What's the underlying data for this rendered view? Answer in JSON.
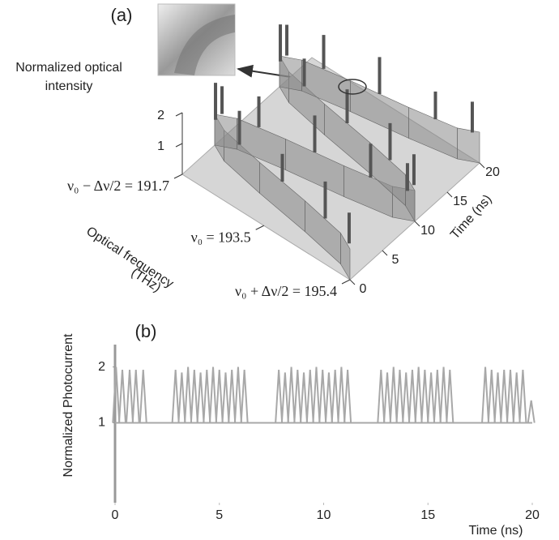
{
  "chart_data": [
    {
      "type": "surface3d",
      "title": "(a)",
      "annotation": [
        "Normalized optical",
        "intensity"
      ],
      "xlabel": "Time (ns)",
      "ylabel": [
        "Optical frequency",
        "(THz)"
      ],
      "xlim": [
        0,
        20
      ],
      "xticks": [
        0,
        5,
        10,
        15,
        20
      ],
      "ylim": [
        195.4,
        191.7
      ],
      "yticks": [
        {
          "value": 191.7,
          "label": "ν₀ − Δν/2 = 191.7"
        },
        {
          "value": 193.5,
          "label": "ν₀ = 193.5"
        },
        {
          "value": 195.4,
          "label": "ν₀ + Δν/2 = 195.4"
        }
      ],
      "zlim": [
        0,
        2
      ],
      "zticks": [
        1,
        2
      ],
      "baseline": 1,
      "color": "#8a8a8a",
      "trace": {
        "x": [
          0,
          1,
          2,
          3,
          4,
          5,
          6,
          7,
          8,
          9,
          10,
          11,
          12,
          13,
          14,
          15,
          16,
          17,
          18,
          19,
          20
        ],
        "values": [
          195.4,
          195.05,
          194.12,
          192.98,
          192.05,
          191.7,
          192.05,
          192.98,
          194.12,
          195.05,
          195.4,
          195.05,
          194.12,
          192.98,
          192.05,
          191.7,
          192.05,
          192.98,
          194.12,
          195.05,
          195.4
        ]
      },
      "pulses": {
        "x": [
          0.5,
          1.5,
          2.5,
          3.5,
          4.5,
          5.5,
          6.5,
          7.5,
          8.5,
          9.5,
          10.5,
          11.5,
          12.5,
          13.5,
          14.5,
          15.5,
          16.5,
          17.5,
          18.5,
          19.5
        ],
        "y": [
          195.31,
          194.64,
          193.55,
          192.46,
          191.79,
          191.79,
          192.46,
          193.55,
          194.64,
          195.31,
          195.31,
          194.64,
          193.55,
          192.46,
          191.79,
          191.79,
          192.46,
          193.55,
          194.64,
          195.31
        ],
        "values": [
          2.0,
          2.2,
          1.9,
          2.1,
          2.2,
          1.9,
          2.0,
          2.2,
          2.1,
          1.9,
          2.0,
          2.2,
          2.1,
          1.9,
          2.2,
          2.0,
          2.1,
          2.2,
          1.9,
          2.0
        ]
      }
    },
    {
      "type": "pulse",
      "title": "(b)",
      "xlabel": "Time (ns)",
      "ylabel": "Normalized Photocurrent",
      "xlim": [
        0,
        20
      ],
      "xticks": [
        0,
        5,
        10,
        15,
        20
      ],
      "ylim": [
        -0.43,
        2.4
      ],
      "yticks": [
        1,
        2
      ],
      "baseline": 1,
      "color": "#a8a8a8",
      "x": [
        0.05,
        0.35,
        0.7,
        1.0,
        1.35,
        2.9,
        3.2,
        3.5,
        3.8,
        4.1,
        4.4,
        4.7,
        5.0,
        5.3,
        5.6,
        5.9,
        6.2,
        7.85,
        8.15,
        8.45,
        8.75,
        9.05,
        9.35,
        9.65,
        9.95,
        10.25,
        10.55,
        10.85,
        11.15,
        12.75,
        13.05,
        13.35,
        13.65,
        13.95,
        14.25,
        14.55,
        14.85,
        15.15,
        15.45,
        15.75,
        16.05,
        17.75,
        18.05,
        18.35,
        18.65,
        18.95,
        19.25,
        19.55,
        19.95
      ],
      "values": [
        2.0,
        1.95,
        1.95,
        1.95,
        1.95,
        1.95,
        1.9,
        2.0,
        1.95,
        1.9,
        1.95,
        2.0,
        1.95,
        1.9,
        1.95,
        2.0,
        1.95,
        1.95,
        1.9,
        2.0,
        1.95,
        1.9,
        1.95,
        2.0,
        1.95,
        1.9,
        1.95,
        2.0,
        1.95,
        1.95,
        1.9,
        2.0,
        1.95,
        1.9,
        1.95,
        2.0,
        1.95,
        1.9,
        1.95,
        2.0,
        1.95,
        2.0,
        1.95,
        1.9,
        1.95,
        1.95,
        1.9,
        1.95,
        1.4
      ]
    }
  ]
}
